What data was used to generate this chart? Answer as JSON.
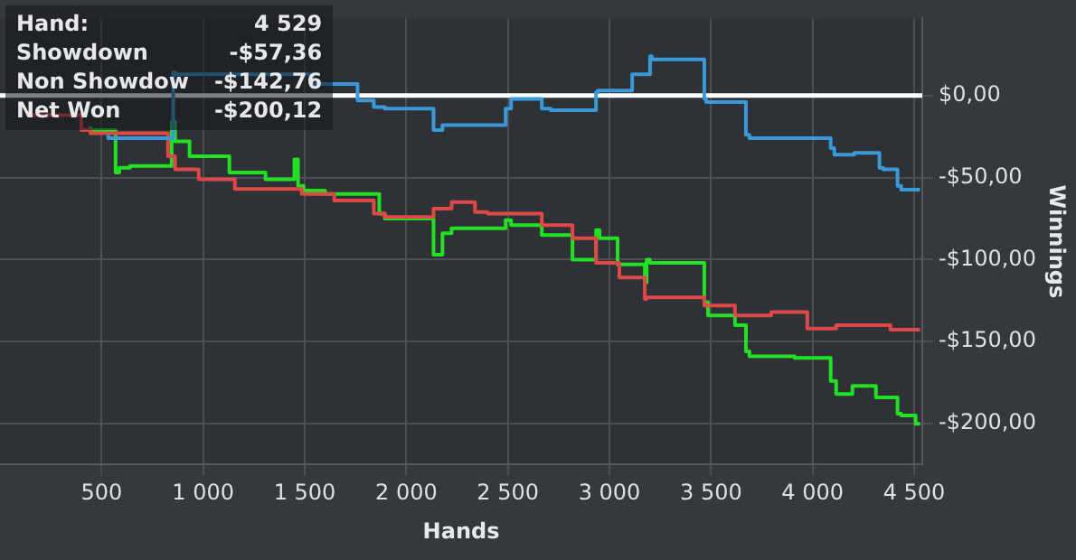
{
  "chart_data": {
    "type": "step",
    "xlabel": "Hands",
    "ylabel": "Winnings",
    "xlim": [
      0,
      4540
    ],
    "ylim": [
      -225,
      47
    ],
    "xticks": [
      500,
      {
        "value": 1000,
        "label": "1 000"
      },
      {
        "value": 1500,
        "label": "1 500"
      },
      {
        "value": 2000,
        "label": "2 000"
      },
      {
        "value": 2500,
        "label": "2 500"
      },
      {
        "value": 3000,
        "label": "3 000"
      },
      {
        "value": 3500,
        "label": "3 500"
      },
      {
        "value": 4000,
        "label": "4 000"
      },
      {
        "value": 4500,
        "label": "4 500"
      }
    ],
    "yticks": [
      {
        "value": 0,
        "label": "$0,00"
      },
      {
        "value": -50,
        "label": "-$50,00"
      },
      {
        "value": -100,
        "label": "-$100,00"
      },
      {
        "value": -150,
        "label": "-$150,00"
      },
      {
        "value": -200,
        "label": "-$200,00"
      }
    ],
    "grid": true,
    "legend": false,
    "marker": "none",
    "ref_lines": [
      {
        "axis": "y",
        "value": 0,
        "color": "#ffffff"
      }
    ],
    "annotations": [
      "Hand:",
      "4 529",
      "Showdown",
      "-$57,36",
      "Non Showdow",
      "-$142,76",
      "Net Won",
      "-$200,12"
    ],
    "series": [
      {
        "color": "#3a9ad9",
        "x": [
          533,
          605,
          853,
          862,
          1538,
          1556,
          1760,
          1840,
          1894,
          2134,
          2178,
          2249,
          2489,
          2516,
          2667,
          2711,
          2934,
          2943,
          3112,
          3200,
          3209,
          3467,
          3476,
          3672,
          3689,
          4089,
          4107,
          4205,
          4329,
          4347,
          4418,
          4436,
          4529
        ],
        "values": [
          -24,
          -26,
          -26,
          14,
          13,
          5,
          7,
          -3,
          -7,
          -8,
          -21,
          -18,
          -18,
          -8,
          -2,
          -8,
          -9,
          2,
          3,
          13,
          24,
          22,
          -2,
          -4,
          -24,
          -26,
          -32,
          -36,
          -35,
          -44,
          -45,
          -55,
          -57.36
        ]
      },
      {
        "color": "#e04848",
        "x": [
          133,
          400,
          445,
          596,
          827,
          862,
          978,
          1156,
          1485,
          1645,
          1840,
          1894,
          2134,
          2223,
          2338,
          2400,
          2667,
          2818,
          2934,
          3049,
          3174,
          3183,
          3467,
          3618,
          3796,
          3974,
          4116,
          4383,
          4529
        ],
        "values": [
          -11,
          -12,
          -21,
          -23,
          -23,
          -37,
          -45,
          -51,
          -57,
          -60,
          -64,
          -72,
          -74,
          -69,
          -65,
          -71,
          -72,
          -79,
          -87,
          -102,
          -111,
          -124,
          -123,
          -128,
          -134,
          -132,
          -142,
          -140,
          -142.76
        ]
      },
      {
        "color": "#22e022",
        "x": [
          445,
          569,
          587,
          640,
          845,
          862,
          933,
          1129,
          1307,
          1449,
          1467,
          1494,
          1600,
          1867,
          1894,
          2134,
          2178,
          2223,
          2489,
          2516,
          2667,
          2818,
          2862,
          2934,
          2951,
          3040,
          3067,
          3174,
          3183,
          3200,
          3467,
          3485,
          3618,
          3672,
          3689,
          3912,
          4089,
          4116,
          4196,
          4240,
          4312,
          4338,
          4418,
          4436,
          4507,
          4529
        ],
        "values": [
          -19,
          -21,
          -47,
          -44,
          -43,
          -16,
          -28,
          -37,
          -47,
          -51,
          -39,
          -55,
          -58,
          -60,
          -72,
          -75,
          -97,
          -84,
          -81,
          -76,
          -79,
          -85,
          -100,
          -100,
          -82,
          -87,
          -103,
          -103,
          -114,
          -100,
          -102,
          -126,
          -134,
          -140,
          -156,
          -159,
          -160,
          -174,
          -182,
          -177,
          -177,
          -184,
          -184,
          -194,
          -195,
          -200.12
        ]
      }
    ]
  }
}
